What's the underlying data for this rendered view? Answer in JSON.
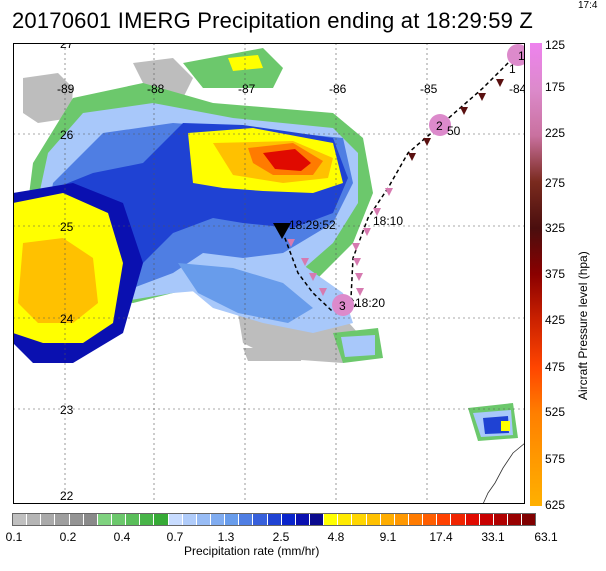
{
  "title": "20170601 IMERG Precipitation ending at 18:29:59 Z",
  "corner_text": "17:4",
  "map": {
    "lon_labels": [
      "-89",
      "-88",
      "-87",
      "-86",
      "-85",
      "-84"
    ],
    "lat_labels": [
      "27",
      "26",
      "25",
      "24",
      "23",
      "22"
    ],
    "time_labels": [
      "18:29:52",
      "18:10",
      "18:20",
      "1",
      "50"
    ],
    "waypoints": [
      "1",
      "2",
      "3"
    ]
  },
  "pressure_colorbar": {
    "label": "Aircraft Pressure level (hpa)",
    "ticks": [
      "125",
      "175",
      "225",
      "275",
      "325",
      "375",
      "425",
      "475",
      "525",
      "575",
      "625"
    ],
    "colors": [
      "#ee82ee",
      "#dc8acb",
      "#c9719f",
      "#7a2a1e",
      "#4a0e0e",
      "#8b0000",
      "#cc2200",
      "#ff4500",
      "#ff7f00",
      "#ff9900",
      "#ffb000"
    ]
  },
  "precip_colorbar": {
    "label": "Precipitation rate (mm/hr)",
    "ticks": [
      "0.1",
      "0.2",
      "0.4",
      "0.7",
      "1.3",
      "2.5",
      "4.8",
      "9.1",
      "17.4",
      "33.1",
      "63.1"
    ],
    "colors": [
      "#c0c0c0",
      "#b5b5b5",
      "#aaaaaa",
      "#9f9f9f",
      "#949494",
      "#8a8a8a",
      "#7fd27f",
      "#6cc86c",
      "#5abe5a",
      "#48b448",
      "#36aa36",
      "#c8dcff",
      "#b0ccfa",
      "#98bcf5",
      "#80acf0",
      "#689ceb",
      "#4f7ee3",
      "#3760db",
      "#1f42d3",
      "#0924cb",
      "#0a10b0",
      "#0a0a8e",
      "#ffff00",
      "#ffea00",
      "#ffd600",
      "#ffc100",
      "#ffad00",
      "#ff9800",
      "#ff7b00",
      "#ff5e00",
      "#ff4100",
      "#f02400",
      "#e00a00",
      "#c80000",
      "#b00000",
      "#980000",
      "#800000"
    ]
  }
}
